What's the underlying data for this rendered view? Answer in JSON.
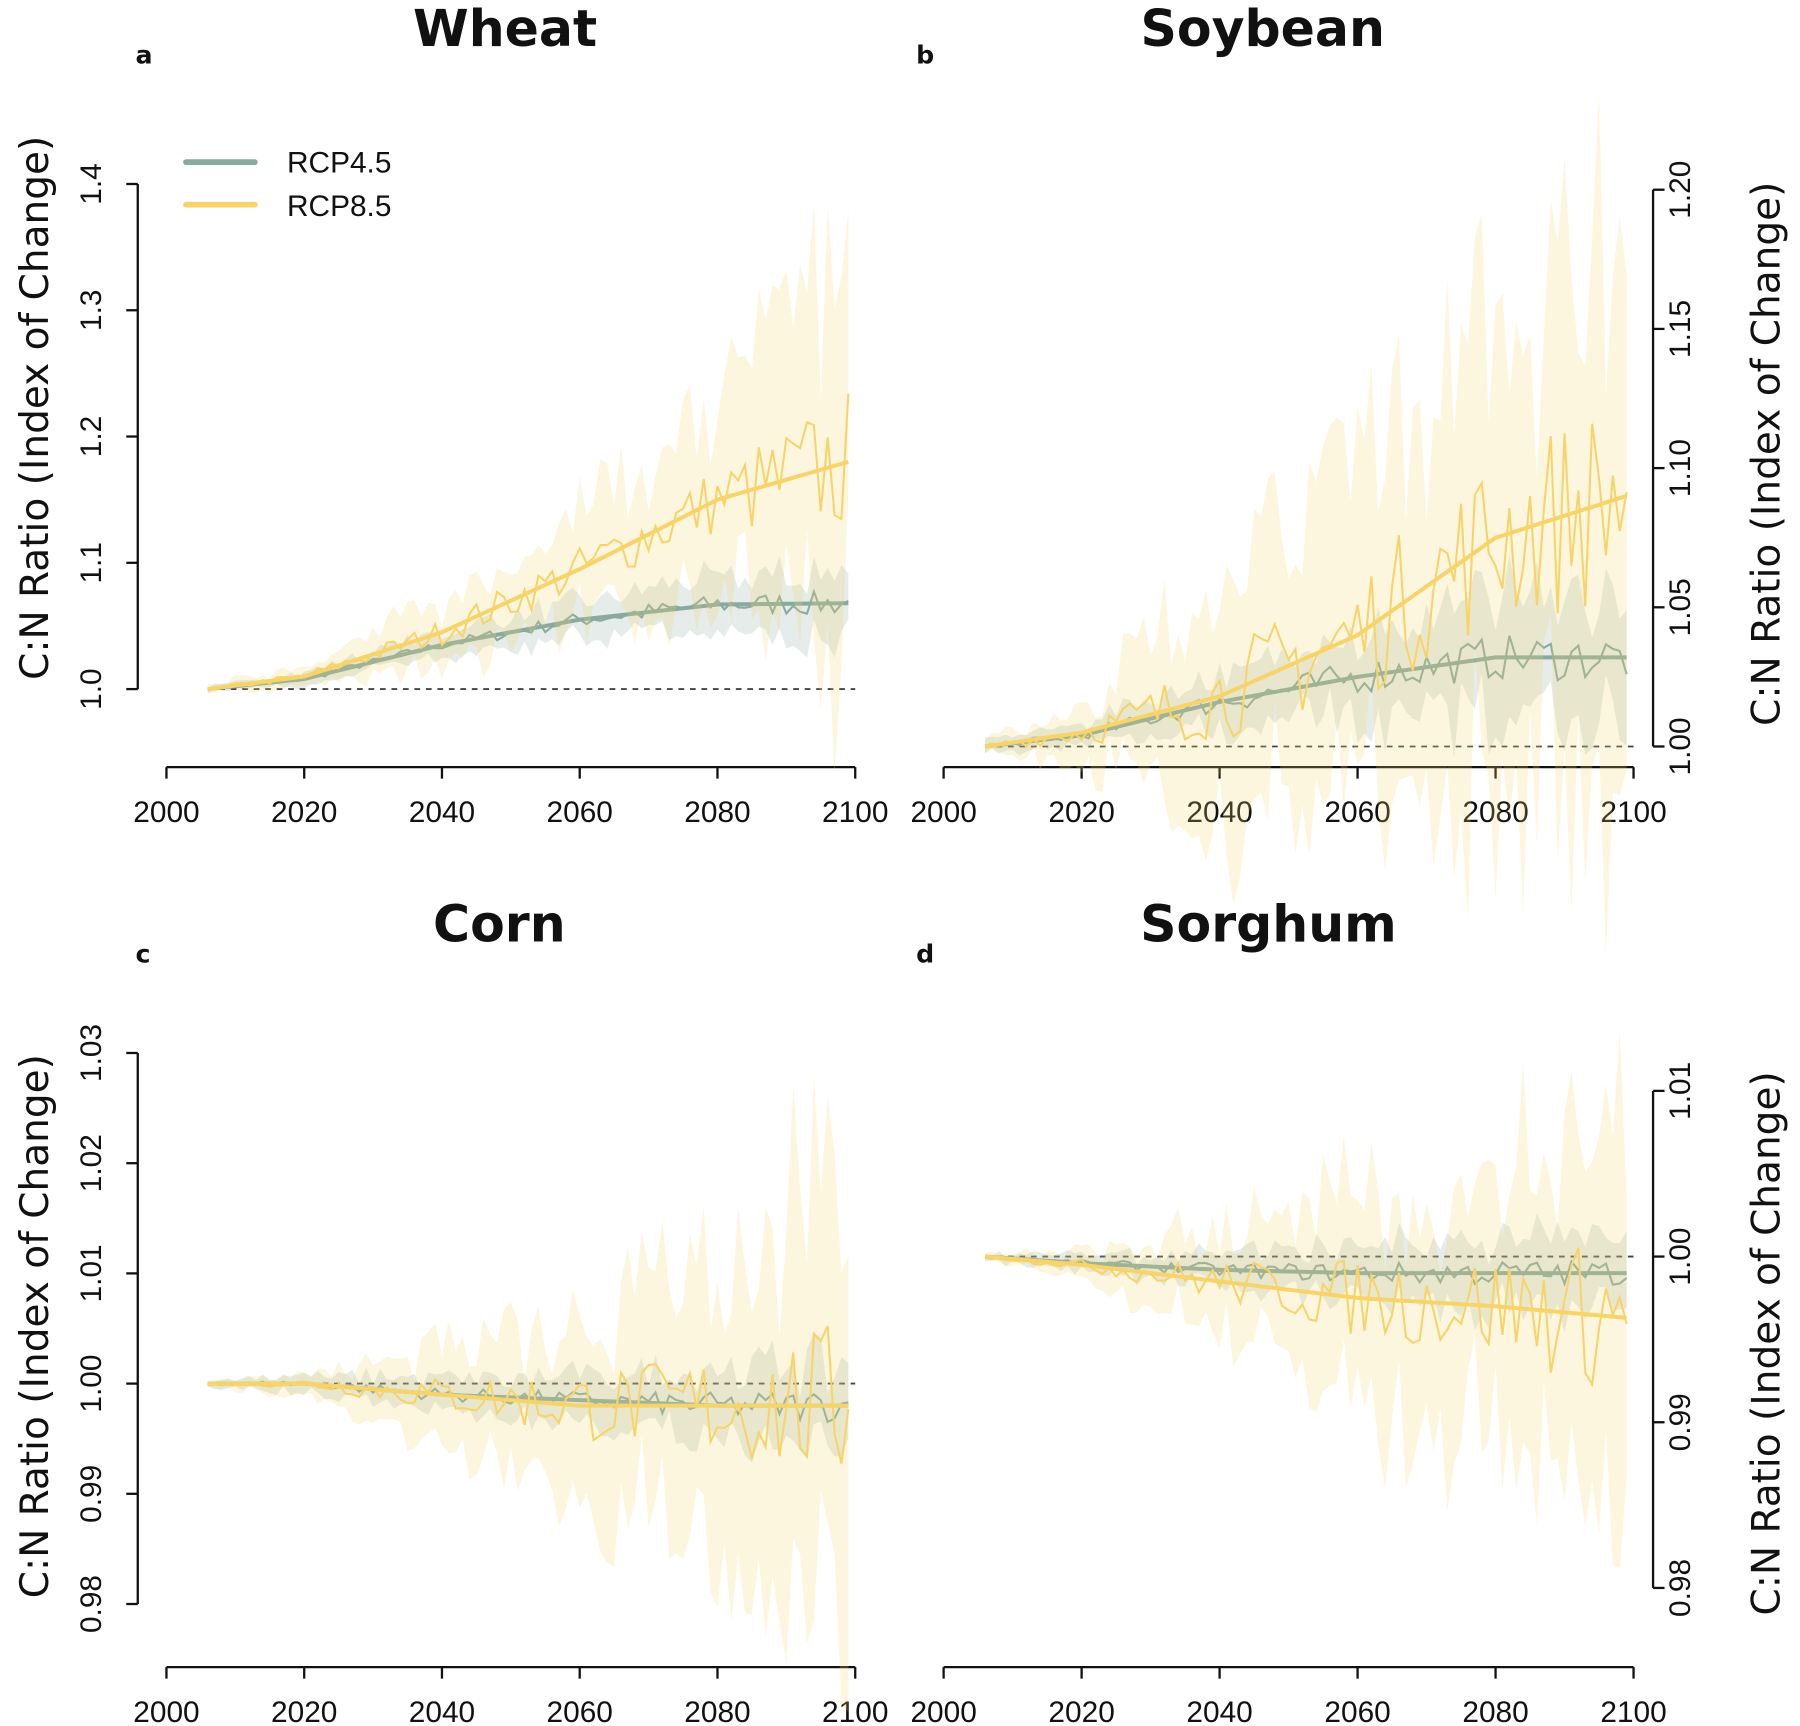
{
  "colors": {
    "RCP4.5": "#8aaaa0",
    "RCP8.5": "#f7d46a"
  },
  "legend": [
    "RCP4.5",
    "RCP8.5"
  ],
  "chart_data": [
    {
      "type": "line",
      "panel": "a",
      "title": "Wheat",
      "ylabel": "C:N Ratio (Index of Change)",
      "xlim": [
        2000,
        2100
      ],
      "ylim": [
        0.95,
        1.4
      ],
      "yticks": [
        "1.0",
        "1.1",
        "1.2",
        "1.3",
        "1.4"
      ],
      "xticks": [
        "2000",
        "2020",
        "2040",
        "2060",
        "2080",
        "2100"
      ],
      "reference": 1.0,
      "x": [
        2006,
        2020,
        2040,
        2060,
        2080,
        2099
      ],
      "series": [
        {
          "name": "RCP4.5",
          "values": [
            1.0,
            1.008,
            1.035,
            1.055,
            1.067,
            1.068
          ],
          "spread": [
            0.002,
            0.005,
            0.01,
            0.015,
            0.02,
            0.025
          ]
        },
        {
          "name": "RCP8.5",
          "values": [
            1.0,
            1.01,
            1.045,
            1.095,
            1.15,
            1.18
          ],
          "spread": [
            0.003,
            0.008,
            0.025,
            0.045,
            0.07,
            0.15
          ]
        }
      ]
    },
    {
      "type": "line",
      "panel": "b",
      "title": "Soybean",
      "ylabel": "C:N Ratio (Index of Change)",
      "xlim": [
        2000,
        2100
      ],
      "ylim": [
        0.995,
        1.2
      ],
      "yticks": [
        "1.00",
        "1.05",
        "1.10",
        "1.15",
        "1.20"
      ],
      "xticks": [
        "2000",
        "2020",
        "2040",
        "2060",
        "2080",
        "2100"
      ],
      "reference": 1.0,
      "x": [
        2006,
        2020,
        2040,
        2060,
        2080,
        2099
      ],
      "series": [
        {
          "name": "RCP4.5",
          "values": [
            1.0,
            1.004,
            1.016,
            1.025,
            1.032,
            1.032
          ],
          "spread": [
            0.002,
            0.004,
            0.01,
            0.015,
            0.02,
            0.022
          ]
        },
        {
          "name": "RCP8.5",
          "values": [
            1.0,
            1.005,
            1.018,
            1.04,
            1.075,
            1.09
          ],
          "spread": [
            0.002,
            0.01,
            0.04,
            0.06,
            0.08,
            0.1
          ]
        }
      ]
    },
    {
      "type": "line",
      "panel": "c",
      "title": "Corn",
      "ylabel": "C:N Ratio (Index of Change)",
      "xlim": [
        2000,
        2100
      ],
      "ylim": [
        0.977,
        1.03
      ],
      "yticks": [
        "0.98",
        "0.99",
        "1.00",
        "1.01",
        "1.02",
        "1.03"
      ],
      "xticks": [
        "2000",
        "2020",
        "2040",
        "2060",
        "2080",
        "2100"
      ],
      "reference": 1.0,
      "x": [
        2006,
        2020,
        2040,
        2060,
        2080,
        2099
      ],
      "series": [
        {
          "name": "RCP4.5",
          "values": [
            1.0,
            1.0,
            0.999,
            0.9985,
            0.998,
            0.998
          ],
          "spread": [
            0.0003,
            0.0008,
            0.0015,
            0.002,
            0.003,
            0.004
          ]
        },
        {
          "name": "RCP8.5",
          "values": [
            1.0,
            1.0,
            0.999,
            0.998,
            0.998,
            0.998
          ],
          "spread": [
            0.0003,
            0.001,
            0.004,
            0.008,
            0.012,
            0.02
          ]
        }
      ]
    },
    {
      "type": "line",
      "panel": "d",
      "title": "Sorghum",
      "ylabel": "C:N Ratio (Index of Change)",
      "xlim": [
        2000,
        2100
      ],
      "ylim": [
        0.979,
        1.01
      ],
      "yticks": [
        "0.98",
        "0.99",
        "1.00",
        "1.01"
      ],
      "xticks": [
        "2000",
        "2020",
        "2040",
        "2060",
        "2080",
        "2100"
      ],
      "reference": 1.0,
      "x": [
        2006,
        2020,
        2040,
        2060,
        2080,
        2099
      ],
      "series": [
        {
          "name": "RCP4.5",
          "values": [
            1.0,
            0.9996,
            0.9992,
            0.999,
            0.999,
            0.999
          ],
          "spread": [
            0.0002,
            0.0005,
            0.001,
            0.0015,
            0.002,
            0.002
          ]
        },
        {
          "name": "RCP8.5",
          "values": [
            1.0,
            0.9995,
            0.9985,
            0.9975,
            0.997,
            0.9963
          ],
          "spread": [
            0.0002,
            0.0008,
            0.003,
            0.006,
            0.008,
            0.012
          ]
        }
      ]
    }
  ]
}
